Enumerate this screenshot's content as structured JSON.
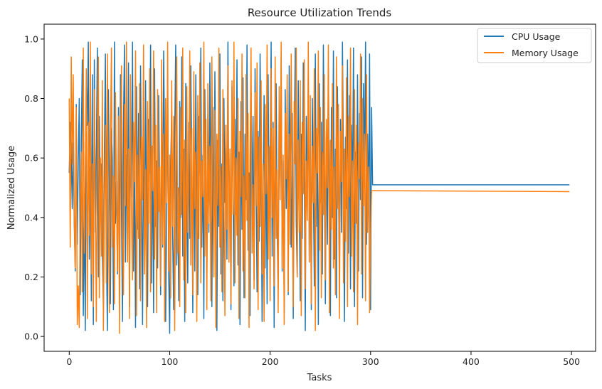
{
  "chart_data": {
    "type": "line",
    "title": "Resource Utilization Trends",
    "xlabel": "Tasks",
    "ylabel": "Normalized Usage",
    "xlim": [
      -25,
      524
    ],
    "ylim": [
      -0.05,
      1.05
    ],
    "xticks": [
      0,
      100,
      200,
      300,
      400,
      500
    ],
    "yticks": [
      0.0,
      0.2,
      0.4,
      0.6,
      0.8,
      1.0
    ],
    "xtick_labels": [
      "0",
      "100",
      "200",
      "300",
      "400",
      "500"
    ],
    "ytick_labels": [
      "0.0",
      "0.2",
      "0.4",
      "0.6",
      "0.8",
      "1.0"
    ],
    "grid": false,
    "legend_position": "top-right",
    "series": [
      {
        "name": "CPU Usage",
        "color": "#1f77b4",
        "x_start": 0,
        "values": [
          0.55,
          0.72,
          0.61,
          0.43,
          0.65,
          0.38,
          0.22,
          0.78,
          0.31,
          0.59,
          0.8,
          0.14,
          0.66,
          0.93,
          0.07,
          0.45,
          0.02,
          0.84,
          0.71,
          0.99,
          0.26,
          0.57,
          0.12,
          0.88,
          0.04,
          0.93,
          0.35,
          0.62,
          0.97,
          0.2,
          0.74,
          0.4,
          0.58,
          0.27,
          0.1,
          0.62,
          0.95,
          0.3,
          0.02,
          0.83,
          0.46,
          0.11,
          0.7,
          0.6,
          0.09,
          0.99,
          0.38,
          0.52,
          0.21,
          0.77,
          0.15,
          0.88,
          0.43,
          0.05,
          0.72,
          0.98,
          0.25,
          0.61,
          0.34,
          0.92,
          0.1,
          0.68,
          0.47,
          0.99,
          0.22,
          0.56,
          0.03,
          0.84,
          0.36,
          0.75,
          0.16,
          0.91,
          0.52,
          0.04,
          0.66,
          0.29,
          0.86,
          0.41,
          0.1,
          0.73,
          0.55,
          0.98,
          0.18,
          0.64,
          0.08,
          0.9,
          0.37,
          0.59,
          0.23,
          0.81,
          0.47,
          0.14,
          0.7,
          0.3,
          0.96,
          0.62,
          0.05,
          0.43,
          0.87,
          0.21,
          0.01,
          0.57,
          0.76,
          0.33,
          0.09,
          0.68,
          0.98,
          0.24,
          0.5,
          0.12,
          0.79,
          0.4,
          0.94,
          0.27,
          0.63,
          0.05,
          0.85,
          0.46,
          0.18,
          0.72,
          0.33,
          0.91,
          0.58,
          0.08,
          0.67,
          0.22,
          0.88,
          0.42,
          0.14,
          0.74,
          0.55,
          0.97,
          0.3,
          0.61,
          0.06,
          0.83,
          0.44,
          0.19,
          0.7,
          0.35,
          0.92,
          0.53,
          0.1,
          0.77,
          0.28,
          0.89,
          0.48,
          0.02,
          0.66,
          0.37,
          0.95,
          0.21,
          0.58,
          0.12,
          0.8,
          0.45,
          0.71,
          0.26,
          0.99,
          0.34,
          0.6,
          0.09,
          0.84,
          0.5,
          0.17,
          0.73,
          0.41,
          0.93,
          0.24,
          0.62,
          0.04,
          0.79,
          0.36,
          0.87,
          0.13,
          0.68,
          0.46,
          0.98,
          0.29,
          0.55,
          0.07,
          0.82,
          0.39,
          0.74,
          0.19,
          0.9,
          0.52,
          0.15,
          0.69,
          0.32,
          0.95,
          0.6,
          0.05,
          0.48,
          0.81,
          0.23,
          0.66,
          0.11,
          0.88,
          0.4,
          0.57,
          0.99,
          0.27,
          0.72,
          0.03,
          0.63,
          0.85,
          0.35,
          0.16,
          0.78,
          0.49,
          0.94,
          0.22,
          0.59,
          0.08,
          0.83,
          0.43,
          0.7,
          0.14,
          0.91,
          0.53,
          0.3,
          0.75,
          0.06,
          0.64,
          0.97,
          0.38,
          0.2,
          0.86,
          0.47,
          0.12,
          0.68,
          0.33,
          0.92,
          0.56,
          0.02,
          0.74,
          0.42,
          0.89,
          0.25,
          0.61,
          0.09,
          0.8,
          0.51,
          0.17,
          0.95,
          0.37,
          0.66,
          0.04,
          0.85,
          0.45,
          0.72,
          0.21,
          0.98,
          0.54,
          0.11,
          0.69,
          0.31,
          0.9,
          0.48,
          0.07,
          0.77,
          0.4,
          0.96,
          0.26,
          0.63,
          0.13,
          0.84,
          0.52,
          0.19,
          0.73,
          0.35,
          0.99,
          0.58,
          0.05,
          0.67,
          0.43,
          0.93,
          0.28,
          0.81,
          0.16,
          0.71,
          0.5,
          0.97,
          0.1,
          0.62,
          0.38,
          0.88,
          0.22,
          0.75,
          0.46,
          0.94,
          0.13,
          0.85,
          0.56,
          0.99,
          0.31,
          0.68,
          0.42,
          0.95,
          0.09,
          0.77,
          0.51,
          0.51,
          0.51,
          0.51
        ],
        "tail": {
          "from_x": 304,
          "to_x": 498,
          "value": 0.51
        }
      },
      {
        "name": "Memory Usage",
        "color": "#ff7f0e",
        "x_start": 0,
        "values": [
          0.8,
          0.3,
          0.94,
          0.58,
          0.88,
          0.41,
          0.23,
          0.77,
          0.04,
          0.17,
          0.03,
          0.45,
          0.62,
          0.15,
          0.97,
          0.28,
          0.53,
          0.9,
          0.06,
          0.72,
          0.34,
          0.99,
          0.21,
          0.58,
          0.1,
          0.83,
          0.46,
          0.05,
          0.69,
          0.94,
          0.13,
          0.6,
          0.27,
          0.86,
          0.02,
          0.43,
          0.71,
          0.18,
          0.95,
          0.39,
          0.08,
          0.65,
          0.97,
          0.3,
          0.54,
          0.11,
          0.82,
          0.47,
          0.22,
          0.74,
          0.01,
          0.59,
          0.91,
          0.36,
          0.14,
          0.78,
          0.44,
          0.99,
          0.25,
          0.63,
          0.06,
          0.88,
          0.4,
          0.19,
          0.72,
          0.52,
          0.96,
          0.07,
          0.61,
          0.33,
          0.85,
          0.12,
          0.67,
          0.46,
          0.98,
          0.21,
          0.56,
          0.03,
          0.79,
          0.38,
          0.9,
          0.15,
          0.64,
          0.49,
          0.96,
          0.26,
          0.71,
          0.08,
          0.83,
          0.42,
          0.57,
          0.17,
          0.93,
          0.31,
          0.68,
          0.05,
          0.8,
          0.45,
          0.99,
          0.22,
          0.61,
          0.13,
          0.86,
          0.37,
          0.74,
          0.02,
          0.58,
          0.94,
          0.28,
          0.5,
          0.1,
          0.77,
          0.41,
          0.97,
          0.19,
          0.66,
          0.08,
          0.84,
          0.35,
          0.55,
          0.96,
          0.24,
          0.7,
          0.14,
          0.89,
          0.43,
          0.62,
          0.05,
          0.81,
          0.33,
          0.92,
          0.18,
          0.59,
          0.47,
          0.99,
          0.27,
          0.73,
          0.09,
          0.85,
          0.38,
          0.64,
          0.12,
          0.94,
          0.52,
          0.2,
          0.76,
          0.03,
          0.68,
          0.44,
          0.97,
          0.3,
          0.57,
          0.15,
          0.83,
          0.49,
          0.07,
          0.71,
          0.36,
          0.91,
          0.25,
          0.63,
          0.11,
          0.86,
          0.41,
          0.99,
          0.18,
          0.6,
          0.34,
          0.8,
          0.06,
          0.69,
          0.47,
          0.95,
          0.22,
          0.54,
          0.13,
          0.88,
          0.39,
          0.75,
          0.03,
          0.62,
          0.97,
          0.28,
          0.51,
          0.16,
          0.82,
          0.44,
          0.92,
          0.09,
          0.67,
          0.37,
          0.86,
          0.21,
          0.58,
          0.05,
          0.78,
          0.48,
          0.98,
          0.26,
          0.64,
          0.12,
          0.9,
          0.4,
          0.7,
          0.17,
          0.94,
          0.33,
          0.56,
          0.08,
          0.84,
          0.46,
          0.99,
          0.23,
          0.61,
          0.04,
          0.75,
          0.53,
          0.88,
          0.15,
          0.68,
          0.31,
          0.95,
          0.42,
          0.1,
          0.79,
          0.58,
          0.97,
          0.2,
          0.66,
          0.35,
          0.86,
          0.07,
          0.72,
          0.48,
          0.93,
          0.16,
          0.59,
          0.39,
          0.99,
          0.25,
          0.81,
          0.11,
          0.64,
          0.45,
          0.9,
          0.02,
          0.7,
          0.55,
          0.96,
          0.29,
          0.77,
          0.13,
          0.62,
          0.41,
          0.88,
          0.19,
          0.73,
          0.5,
          0.98,
          0.08,
          0.66,
          0.36,
          0.85,
          0.23,
          0.57,
          0.14,
          0.94,
          0.43,
          0.78,
          0.06,
          0.69,
          0.52,
          0.91,
          0.18,
          0.63,
          0.32,
          0.87,
          0.1,
          0.74,
          0.47,
          0.97,
          0.27,
          0.59,
          0.15,
          0.83,
          0.38,
          0.71,
          0.04,
          0.65,
          0.53,
          0.95,
          0.21,
          0.8,
          0.44,
          0.68,
          0.12,
          0.88,
          0.35,
          0.57,
          0.08,
          0.33,
          0.49,
          0.49,
          0.49,
          0.49
        ],
        "tail": {
          "from_x": 304,
          "to_x": 498,
          "value": 0.487
        }
      }
    ]
  }
}
